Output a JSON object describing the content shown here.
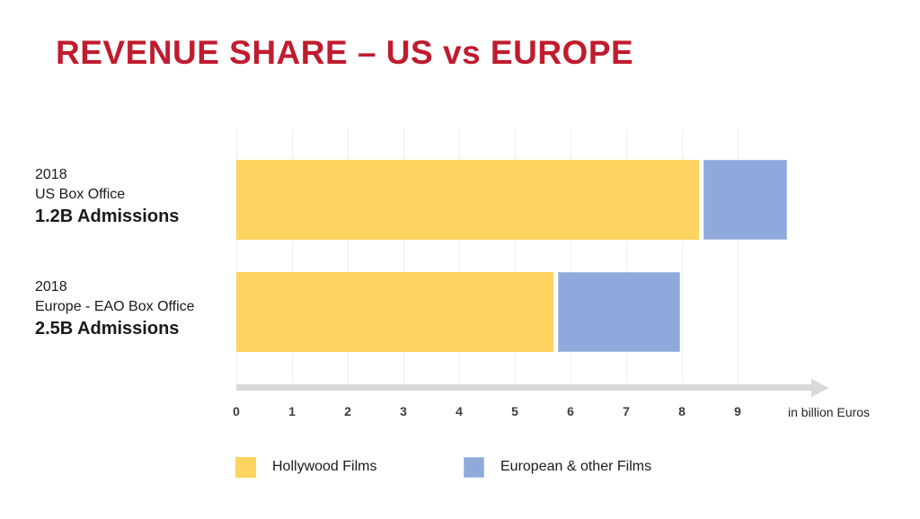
{
  "slide": {
    "title": "REVENUE SHARE – US vs EUROPE"
  },
  "colors": {
    "title_red": "#C01B2E",
    "hollywood_yellow": "#FCD45F",
    "european_blue": "#8FA9DC",
    "blue_border": "#AEC0E6",
    "axis_gray": "#D9D9D9",
    "gridline_gray": "#EFEFEF"
  },
  "chart_data": {
    "type": "bar",
    "orientation": "horizontal",
    "stacked": true,
    "title": "REVENUE SHARE – US vs EUROPE",
    "row_labels": [
      {
        "line1": "2018",
        "line2": "US Box Office",
        "line3": "1.2B Admissions"
      },
      {
        "line1": "2018",
        "line2": "Europe - EAO Box Office",
        "line3": "2.5B Admissions"
      }
    ],
    "series": [
      {
        "name": "Hollywood Films",
        "color": "#FCD45F",
        "values": [
          8.3,
          5.7
        ]
      },
      {
        "name": "European & other Films",
        "color": "#8FA9DC",
        "border": "#AEC0E6",
        "values": [
          1.5,
          2.2
        ]
      }
    ],
    "totals": [
      9.8,
      7.9
    ],
    "x_ticks": [
      "0",
      "1",
      "2",
      "3",
      "4",
      "5",
      "6",
      "7",
      "8",
      "9"
    ],
    "axis_unit_label": "in billion Euros",
    "xlim": [
      0,
      10.6
    ],
    "grid": true,
    "legend_position": "bottom"
  },
  "legend": {
    "items": [
      {
        "label": "Hollywood Films",
        "color": "#FCD45F"
      },
      {
        "label": "European & other Films",
        "color": "#8FA9DC"
      }
    ]
  }
}
